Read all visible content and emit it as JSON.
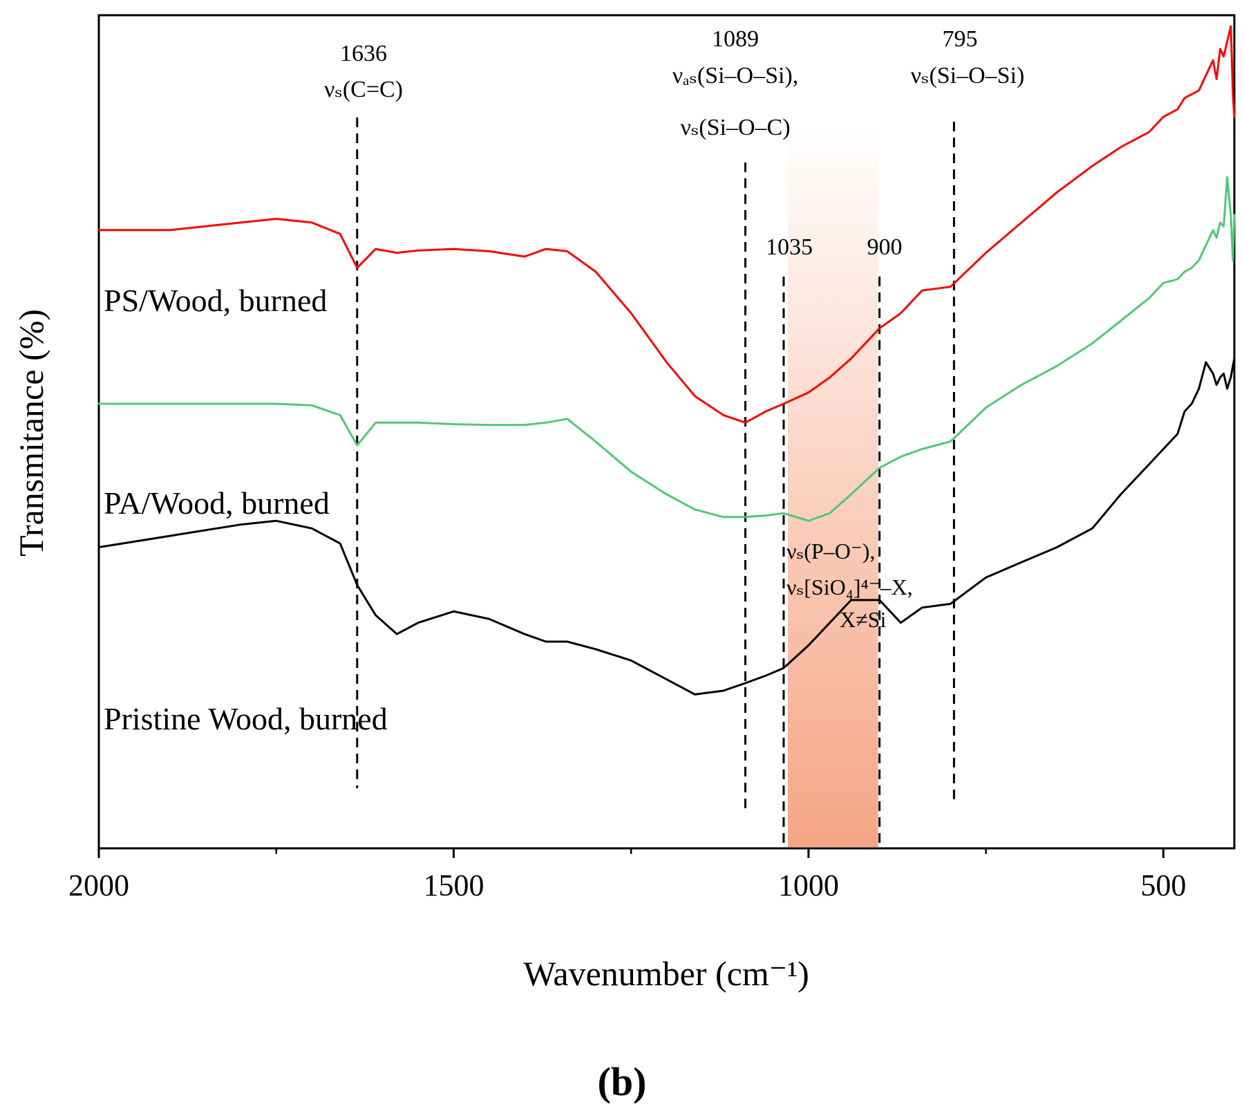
{
  "chart_data": {
    "type": "line",
    "title": "",
    "panel_label": "(b)",
    "xlabel": "Wavenumber (cm⁻¹)",
    "ylabel": "Transmitance (%)",
    "xlim": [
      2000,
      400
    ],
    "x_reversed": true,
    "x_ticks": [
      2000,
      1500,
      1000,
      500
    ],
    "x_tick_labels": [
      "2000",
      "1500",
      "1000",
      "500"
    ],
    "x_minor_ticks": [
      1750,
      1250,
      750
    ],
    "y_ticks_shown": false,
    "ylim": [
      0,
      100
    ],
    "series": [
      {
        "name": "PS/Wood, burned",
        "label": "PS/Wood, burned",
        "color": "#ff0000",
        "x": [
          2000,
          1900,
          1800,
          1750,
          1700,
          1660,
          1636,
          1610,
          1580,
          1550,
          1500,
          1450,
          1400,
          1370,
          1340,
          1300,
          1250,
          1200,
          1160,
          1120,
          1089,
          1060,
          1035,
          1000,
          970,
          940,
          900,
          870,
          840,
          800,
          750,
          700,
          650,
          600,
          560,
          520,
          500,
          480,
          470,
          460,
          450,
          440,
          430,
          425,
          420,
          415,
          410,
          405,
          402,
          400
        ],
        "y": [
          73,
          73,
          74,
          74.5,
          74,
          72.5,
          68,
          70.5,
          70,
          70.3,
          70.5,
          70.2,
          69.5,
          70.5,
          70.2,
          67.5,
          62,
          55.5,
          51,
          48.5,
          47.5,
          49,
          50,
          51.5,
          53.5,
          56,
          60,
          62,
          65,
          65.5,
          70,
          74,
          78,
          81.5,
          84,
          86,
          88,
          89,
          90.5,
          91,
          91.5,
          93.5,
          95.5,
          93,
          97,
          96,
          98,
          100,
          91,
          88
        ]
      },
      {
        "name": "PA/Wood, burned",
        "label": "PA/Wood, burned",
        "color": "#50c878",
        "x": [
          2000,
          1900,
          1800,
          1750,
          1700,
          1660,
          1636,
          1610,
          1580,
          1550,
          1500,
          1450,
          1400,
          1370,
          1340,
          1300,
          1250,
          1200,
          1160,
          1120,
          1089,
          1060,
          1035,
          1000,
          970,
          940,
          900,
          870,
          840,
          800,
          750,
          700,
          650,
          600,
          560,
          520,
          500,
          480,
          470,
          460,
          450,
          440,
          430,
          425,
          420,
          415,
          410,
          405,
          402,
          400
        ],
        "y": [
          50,
          50,
          50,
          50,
          49.8,
          48.5,
          44.5,
          47.5,
          47.5,
          47.5,
          47.3,
          47.2,
          47.2,
          47.5,
          48,
          45,
          41,
          38,
          36,
          35,
          35,
          35.2,
          35.5,
          34.5,
          35.5,
          38,
          41.5,
          43,
          44,
          45,
          49.5,
          52.5,
          55,
          58,
          61,
          64,
          66,
          66.5,
          67.5,
          68,
          69,
          71,
          73,
          72,
          74,
          73.5,
          80,
          75,
          69,
          75
        ]
      },
      {
        "name": "Pristine Wood, burned",
        "label": "Pristine Wood, burned",
        "color": "#000000",
        "x": [
          2000,
          1900,
          1800,
          1750,
          1700,
          1660,
          1636,
          1610,
          1580,
          1550,
          1500,
          1450,
          1400,
          1370,
          1340,
          1300,
          1250,
          1200,
          1160,
          1120,
          1089,
          1060,
          1035,
          1000,
          970,
          940,
          900,
          870,
          840,
          800,
          750,
          700,
          650,
          600,
          560,
          520,
          500,
          480,
          470,
          460,
          450,
          440,
          430,
          425,
          420,
          415,
          410,
          405,
          402,
          400
        ],
        "y": [
          31,
          32.5,
          34,
          34.5,
          33.5,
          31.5,
          26,
          22,
          19.5,
          21,
          22.5,
          21.5,
          19.5,
          18.5,
          18.5,
          17.5,
          16,
          13.5,
          11.5,
          12,
          13,
          14,
          15,
          18,
          21,
          24,
          24,
          21,
          23,
          23.5,
          27,
          29,
          31,
          33.5,
          38,
          42,
          44,
          46,
          49,
          50,
          52,
          55.5,
          54,
          52.5,
          53.5,
          54,
          52,
          53.5,
          55,
          56
        ]
      }
    ],
    "reference_lines": [
      {
        "x": 1636,
        "label_number": "1636",
        "label_text": "νₛ(C=C)"
      },
      {
        "x": 1089,
        "label_number": "1089",
        "label_text": "νₐₛ(Si–O–Si),",
        "label_text_2": "νₛ(Si–O–C)"
      },
      {
        "x": 1035,
        "label_number": "1035"
      },
      {
        "x": 900,
        "label_number": "900"
      },
      {
        "x": 795,
        "label_number": "795",
        "label_text": "νₛ(Si–O–Si)"
      }
    ],
    "shaded_region": {
      "x_range": [
        1035,
        900
      ],
      "color": "#f5a07e",
      "label_lines": [
        "νₛ(P–O⁻),",
        "νₛ[SiO₄]⁴⁻–X,",
        "X≠Si"
      ]
    }
  }
}
